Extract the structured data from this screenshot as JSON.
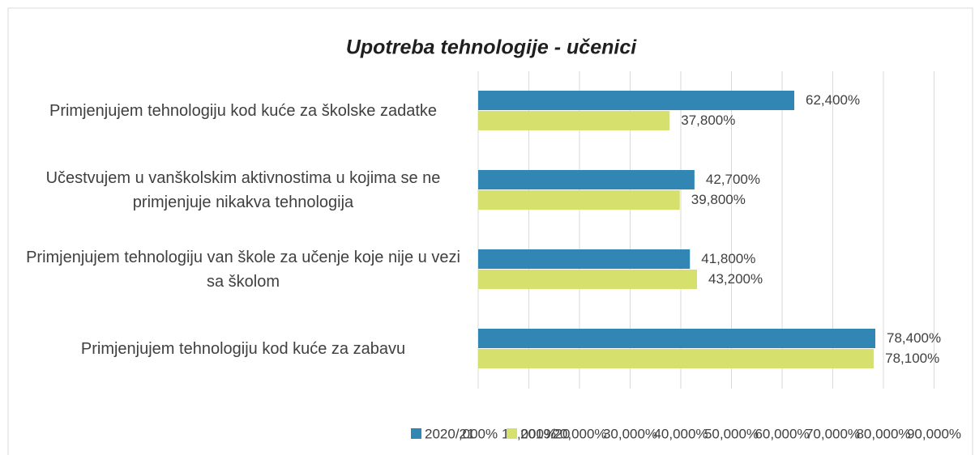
{
  "chart_data": {
    "type": "hbar",
    "title": "Upotreba tehnologije - učenici",
    "categories": [
      "Primjenjujem tehnologiju kod kuće za školske zadatke",
      "Učestvujem u vanškolskim aktivnostima u kojima se ne primjenjuje nikakva tehnologija",
      "Primjenjujem tehnologiju van škole za učenje koje nije u vezi sa školom",
      "Primjenjujem tehnologiju kod kuće za zabavu"
    ],
    "series": [
      {
        "name": "2020/21",
        "color": "#3286b4",
        "values": [
          62.4,
          42.7,
          41.8,
          78.4
        ],
        "value_labels": [
          "62,400%",
          "42,700%",
          "41,800%",
          "78,400%"
        ]
      },
      {
        "name": "2019/20",
        "color": "#d5e16c",
        "values": [
          37.8,
          39.8,
          43.2,
          78.1
        ],
        "value_labels": [
          "37,800%",
          "39,800%",
          "43,200%",
          "78,100%"
        ]
      }
    ],
    "xlim": [
      0,
      90
    ],
    "xticks": [
      {
        "value": 0,
        "label": ",000%"
      },
      {
        "value": 10,
        "label": "10,000%"
      },
      {
        "value": 20,
        "label": "20,000%"
      },
      {
        "value": 30,
        "label": "30,000%"
      },
      {
        "value": 40,
        "label": "40,000%"
      },
      {
        "value": 50,
        "label": "50,000%"
      },
      {
        "value": 60,
        "label": "60,000%"
      },
      {
        "value": 70,
        "label": "70,000%"
      },
      {
        "value": 80,
        "label": "80,000%"
      },
      {
        "value": 90,
        "label": "90,000%"
      }
    ],
    "grid": true,
    "legend": "bottom"
  }
}
